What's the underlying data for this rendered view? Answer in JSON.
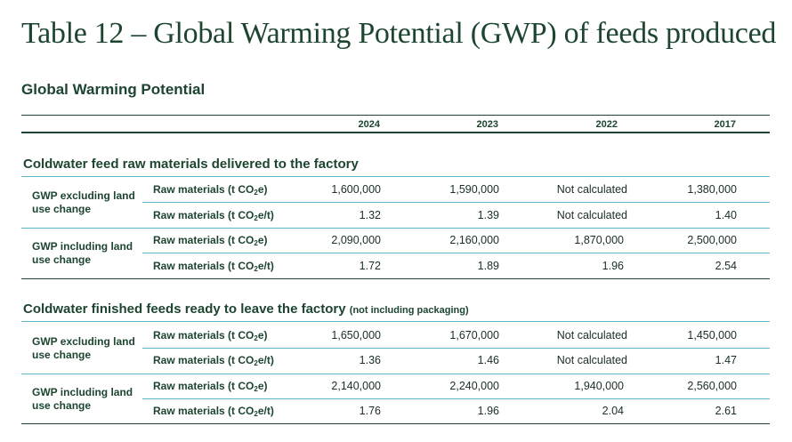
{
  "title": "Table 12 – Global Warming Potential (GWP) of feeds produced",
  "subtitle": "Global Warming Potential",
  "years": [
    "2024",
    "2023",
    "2022",
    "2017"
  ],
  "unit_abs": {
    "pre": "Raw materials (t CO",
    "sub": "2",
    "post": "e)"
  },
  "unit_rel": {
    "pre": "Raw materials (t CO",
    "sub": "2",
    "post": "e/t)"
  },
  "sections": [
    {
      "title": "Coldwater feed raw materials delivered to the factory",
      "note": "",
      "groups": [
        {
          "label": "GWP excluding land use change",
          "rows": [
            [
              "1,600,000",
              "1,590,000",
              "Not calculated",
              "1,380,000"
            ],
            [
              "1.32",
              "1.39",
              "Not calculated",
              "1.40"
            ]
          ]
        },
        {
          "label": "GWP including land use change",
          "rows": [
            [
              "2,090,000",
              "2,160,000",
              "1,870,000",
              "2,500,000"
            ],
            [
              "1.72",
              "1.89",
              "1.96",
              "2.54"
            ]
          ]
        }
      ]
    },
    {
      "title": "Coldwater finished feeds ready to leave the factory",
      "note": "(not including packaging)",
      "groups": [
        {
          "label": "GWP excluding land use change",
          "rows": [
            [
              "1,650,000",
              "1,670,000",
              "Not calculated",
              "1,450,000"
            ],
            [
              "1.36",
              "1.46",
              "Not calculated",
              "1.47"
            ]
          ]
        },
        {
          "label": "GWP including land use change",
          "rows": [
            [
              "2,140,000",
              "2,240,000",
              "1,940,000",
              "2,560,000"
            ],
            [
              "1.76",
              "1.96",
              "2.04",
              "2.61"
            ]
          ]
        }
      ]
    }
  ]
}
